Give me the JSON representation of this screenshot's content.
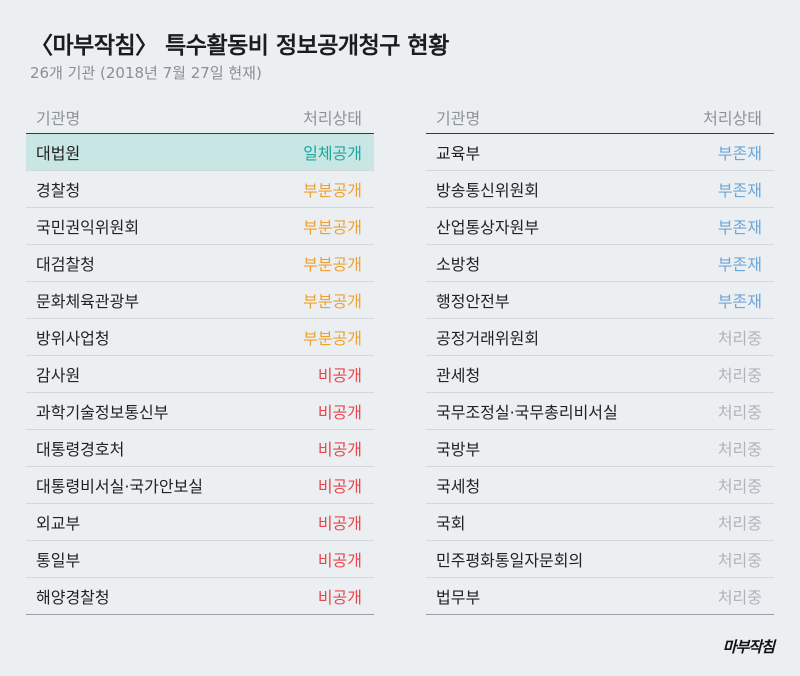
{
  "header": {
    "title": "〈마부작침〉 특수활동비 정보공개청구 현황",
    "subtitle": "26개 기관 (2018년 7월 27일 현재)"
  },
  "columns": {
    "agency": "기관명",
    "status": "처리상태"
  },
  "left_table": [
    {
      "name": "대법원",
      "status": "일체공개"
    },
    {
      "name": "경찰청",
      "status": "부분공개"
    },
    {
      "name": "국민권익위원회",
      "status": "부분공개"
    },
    {
      "name": "대검찰청",
      "status": "부분공개"
    },
    {
      "name": "문화체육관광부",
      "status": "부분공개"
    },
    {
      "name": "방위사업청",
      "status": "부분공개"
    },
    {
      "name": "감사원",
      "status": "비공개"
    },
    {
      "name": "과학기술정보통신부",
      "status": "비공개"
    },
    {
      "name": "대통령경호처",
      "status": "비공개"
    },
    {
      "name": "대통령비서실·국가안보실",
      "status": "비공개"
    },
    {
      "name": "외교부",
      "status": "비공개"
    },
    {
      "name": "통일부",
      "status": "비공개"
    },
    {
      "name": "해양경찰청",
      "status": "비공개"
    }
  ],
  "right_table": [
    {
      "name": "교육부",
      "status": "부존재"
    },
    {
      "name": "방송통신위원회",
      "status": "부존재"
    },
    {
      "name": "산업통상자원부",
      "status": "부존재"
    },
    {
      "name": "소방청",
      "status": "부존재"
    },
    {
      "name": "행정안전부",
      "status": "부존재"
    },
    {
      "name": "공정거래위원회",
      "status": "처리중"
    },
    {
      "name": "관세청",
      "status": "처리중"
    },
    {
      "name": "국무조정실·국무총리비서실",
      "status": "처리중"
    },
    {
      "name": "국방부",
      "status": "처리중"
    },
    {
      "name": "국세청",
      "status": "처리중"
    },
    {
      "name": "국회",
      "status": "처리중"
    },
    {
      "name": "민주평화통일자문회의",
      "status": "처리중"
    },
    {
      "name": "법무부",
      "status": "처리중"
    }
  ],
  "status_colors": {
    "일체공개": "#1aa89e",
    "부분공개": "#f0a030",
    "비공개": "#e8454d",
    "부존재": "#6fa6d8",
    "처리중": "#b0b4b9"
  },
  "highlight_row": "대법원",
  "logo": "마부작침"
}
